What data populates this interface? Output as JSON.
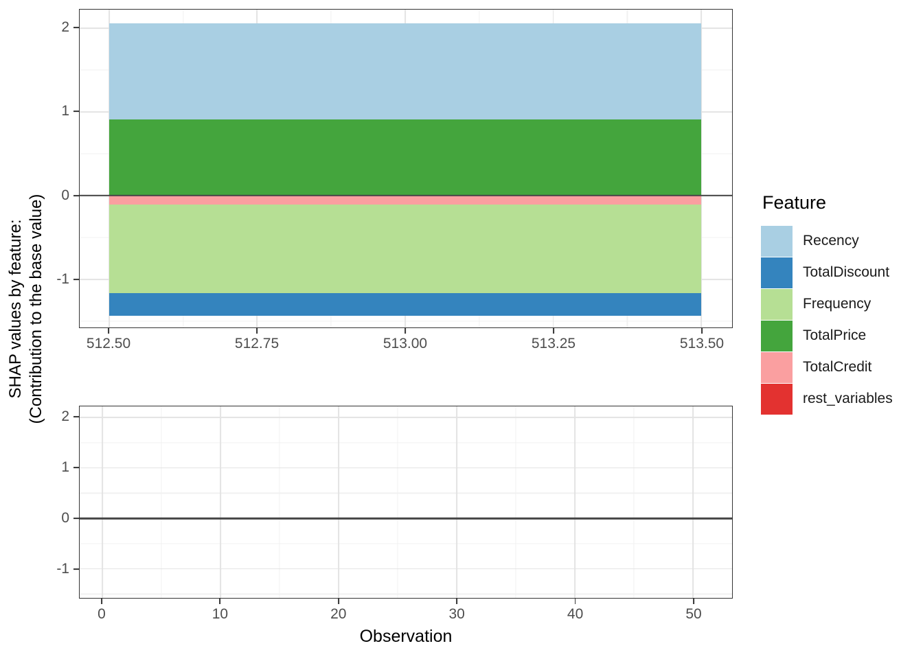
{
  "axes": {
    "y_title_line1": "SHAP values by feature:",
    "y_title_line2": "(Contribution to the base value)",
    "x_title": "Observation"
  },
  "legend": {
    "title": "Feature",
    "items": [
      {
        "label": "Recency",
        "color": "#A9CFE3"
      },
      {
        "label": "TotalDiscount",
        "color": "#3484BE"
      },
      {
        "label": "Frequency",
        "color": "#B6DF94"
      },
      {
        "label": "TotalPrice",
        "color": "#44A53D"
      },
      {
        "label": "TotalCredit",
        "color": "#FA9FA0"
      },
      {
        "label": "rest_variables",
        "color": "#E33230"
      }
    ]
  },
  "feature_contributions": {
    "Recency": 1.15,
    "TotalDiscount": -0.27,
    "Frequency": -1.06,
    "TotalPrice": 0.91,
    "TotalCredit": -0.11,
    "rest_variables": 0.0
  },
  "chart_data": [
    {
      "panel": "top",
      "type": "area",
      "x_ticks": [
        512.5,
        512.75,
        513.0,
        513.25,
        513.5
      ],
      "x_tick_labels": [
        "512.50",
        "512.75",
        "513.00",
        "513.25",
        "513.50"
      ],
      "x_domain": [
        512.4502,
        513.5521
      ],
      "y_ticks": [
        2,
        1,
        0,
        -1
      ],
      "y_tick_labels": [
        "2",
        "1",
        "0",
        "-1"
      ],
      "y_domain": [
        2.22,
        -1.576
      ],
      "zero_line": 0,
      "area_x_range": [
        512.5,
        513.5
      ],
      "bands": [
        {
          "feature": "Recency",
          "from": 0.91,
          "to": 2.06
        },
        {
          "feature": "TotalPrice",
          "from": 0.0,
          "to": 0.91
        },
        {
          "feature": "TotalCredit",
          "from": -0.11,
          "to": 0.0
        },
        {
          "feature": "Frequency",
          "from": -1.17,
          "to": -0.11
        },
        {
          "feature": "TotalDiscount",
          "from": -1.44,
          "to": -1.17
        },
        {
          "feature": "rest_variables",
          "from": 0.0,
          "to": 0.0
        }
      ]
    },
    {
      "panel": "bottom",
      "type": "area",
      "x_ticks": [
        0,
        10,
        20,
        30,
        40,
        50
      ],
      "x_tick_labels": [
        "0",
        "10",
        "20",
        "30",
        "40",
        "50"
      ],
      "x_domain": [
        -1.914,
        53.306
      ],
      "y_ticks": [
        2,
        1,
        0,
        -1
      ],
      "y_tick_labels": [
        "2",
        "1",
        "0",
        "-1"
      ],
      "y_domain": [
        2.22,
        -1.576
      ],
      "zero_line": 0,
      "area_x_range": null,
      "bands": []
    }
  ]
}
